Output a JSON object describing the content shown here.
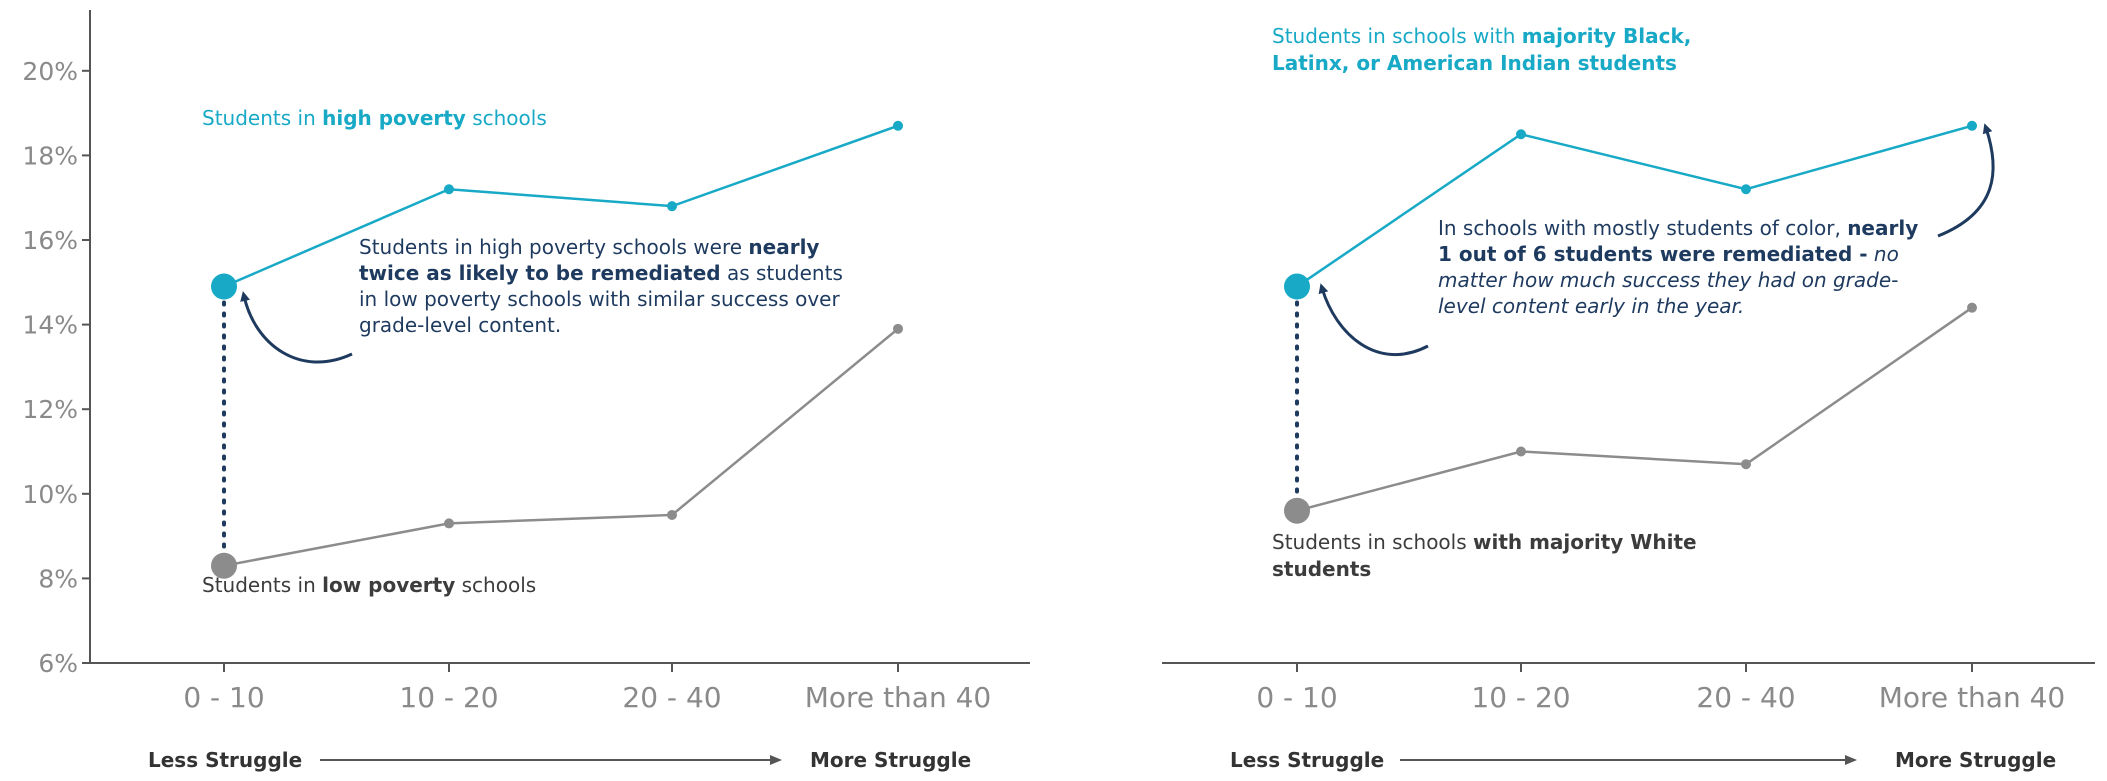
{
  "colors": {
    "teal": "#17a9c6",
    "gray": "#8c8c8c",
    "navy": "#1e3a5f",
    "axis": "#555555"
  },
  "chart_data": [
    {
      "type": "line",
      "categories": [
        "0 - 10",
        "10 - 20",
        "20 - 40",
        "More than 40"
      ],
      "yticks": [
        "20%",
        "18%",
        "16%",
        "14%",
        "12%",
        "10%",
        "8%",
        "6%"
      ],
      "ylim": [
        6,
        20
      ],
      "series": [
        {
          "key": "high",
          "values": [
            14.9,
            17.2,
            16.8,
            18.7
          ]
        },
        {
          "key": "low",
          "values": [
            8.3,
            9.3,
            9.5,
            13.9
          ]
        }
      ],
      "label_high": {
        "pre": "Students in ",
        "bold": "high poverty",
        "post": " schools"
      },
      "label_low": {
        "pre": "Students in ",
        "bold": "low poverty",
        "post": " schools"
      },
      "annotation": {
        "t1": "Students in high poverty schools were ",
        "b1": "nearly twice as likely to be remediated",
        "t2": " as students in low poverty schools with similar success over grade-level content."
      },
      "struggle_left": "Less Struggle",
      "struggle_right": "More Struggle"
    },
    {
      "type": "line",
      "categories": [
        "0 - 10",
        "10 - 20",
        "20 - 40",
        "More than 40"
      ],
      "ylim": [
        6,
        20
      ],
      "series": [
        {
          "key": "majority_poc",
          "values": [
            14.9,
            18.5,
            17.2,
            18.7
          ]
        },
        {
          "key": "majority_white",
          "values": [
            9.6,
            11.0,
            10.7,
            14.4
          ]
        }
      ],
      "label_high": {
        "pre": "Students in schools with ",
        "bold": "majority Black, Latinx, or American Indian students"
      },
      "label_low": {
        "pre": "Students in schools ",
        "bold": "with majority White students"
      },
      "annotation": {
        "t1": "In schools with mostly students of color, ",
        "b1": "nearly 1 out of 6 students were remediated -",
        "i1": " no matter how much success they had on grade-level content early in the year."
      },
      "struggle_left": "Less Struggle",
      "struggle_right": "More Struggle"
    }
  ]
}
